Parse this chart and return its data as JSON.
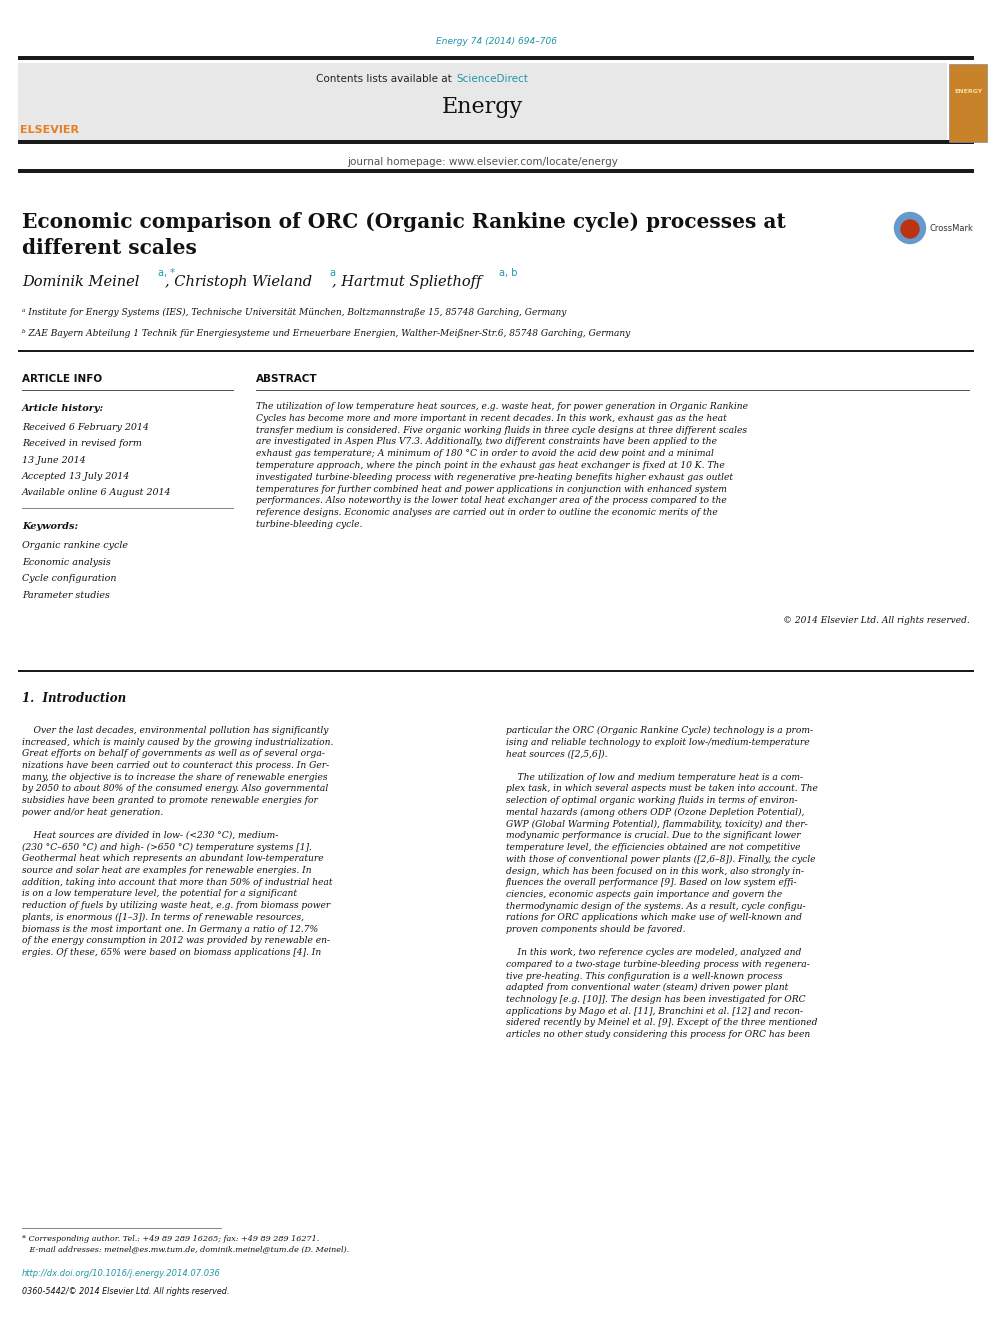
{
  "page_width": 9.92,
  "page_height": 13.23,
  "bg_color": "#ffffff",
  "header_cite": "Energy 74 (2014) 694–706",
  "header_cite_color": "#2196a8",
  "journal_header_bg": "#e8e8e8",
  "journal_name": "Energy",
  "journal_homepage": "journal homepage: www.elsevier.com/locate/energy",
  "contents_text": "Contents lists available at ",
  "sciencedirect_text": "ScienceDirect",
  "sciencedirect_color": "#2196a8",
  "top_bar_color": "#1a1a1a",
  "elsevier_color": "#e67e22",
  "title": "Economic comparison of ORC (Organic Rankine cycle) processes at\ndifferent scales",
  "authors": "Dominik Meinel",
  "authors_super": "a, *",
  "authors2": ", Christoph Wieland",
  "authors2_super": "a",
  "authors3": ", Hartmut Spliethoff",
  "authors3_super": "a, b",
  "affil_a": "ᵃ Institute for Energy Systems (IES), Technische Universität München, Boltzmannstraße 15, 85748 Garching, Germany",
  "affil_b": "ᵇ ZAE Bayern Abteilung 1 Technik für Energiesysteme und Erneuerbare Energien, Walther-Meißner-Str.6, 85748 Garching, Germany",
  "section_article_info": "ARTICLE INFO",
  "section_abstract": "ABSTRACT",
  "article_history_label": "Article history:",
  "article_history": [
    "Received 6 February 2014",
    "Received in revised form",
    "13 June 2014",
    "Accepted 13 July 2014",
    "Available online 6 August 2014"
  ],
  "keywords_label": "Keywords:",
  "keywords": [
    "Organic rankine cycle",
    "Economic analysis",
    "Cycle configuration",
    "Parameter studies"
  ],
  "abs_wrapped": "The utilization of low temperature heat sources, e.g. waste heat, for power generation in Organic Rankine\nCycles has become more and more important in recent decades. In this work, exhaust gas as the heat\ntransfer medium is considered. Five organic working fluids in three cycle designs at three different scales\nare investigated in Aspen Plus V7.3. Additionally, two different constraints have been applied to the\nexhaust gas temperature; A minimum of 180 °C in order to avoid the acid dew point and a minimal\ntemperature approach, where the pinch point in the exhaust gas heat exchanger is fixed at 10 K. The\ninvestigated turbine-bleeding process with regenerative pre-heating benefits higher exhaust gas outlet\ntemperatures for further combined heat and power applications in conjunction with enhanced system\nperformances. Also noteworthy is the lower total heat exchanger area of the process compared to the\nreference designs. Economic analyses are carried out in order to outline the economic merits of the\nturbine-bleeding cycle.",
  "copyright": "© 2014 Elsevier Ltd. All rights reserved.",
  "intro_section": "1.  Introduction",
  "intro_text1": "    Over the last decades, environmental pollution has significantly\nincreased, which is mainly caused by the growing industrialization.\nGreat efforts on behalf of governments as well as of several orga-\nnizations have been carried out to counteract this process. In Ger-\nmany, the objective is to increase the share of renewable energies\nby 2050 to about 80% of the consumed energy. Also governmental\nsubsidies have been granted to promote renewable energies for\npower and/or heat generation.\n\n    Heat sources are divided in low- (<230 °C), medium-\n(230 °C–650 °C) and high- (>650 °C) temperature systems [1].\nGeothermal heat which represents an abundant low-temperature\nsource and solar heat are examples for renewable energies. In\naddition, taking into account that more than 50% of industrial heat\nis on a low temperature level, the potential for a significant\nreduction of fuels by utilizing waste heat, e.g. from biomass power\nplants, is enormous ([1–3]). In terms of renewable resources,\nbiomass is the most important one. In Germany a ratio of 12.7%\nof the energy consumption in 2012 was provided by renewable en-\nergies. Of these, 65% were based on biomass applications [4]. In",
  "intro_text2": "particular the ORC (Organic Rankine Cycle) technology is a prom-\nising and reliable technology to exploit low-/medium-temperature\nheat sources ([2,5,6]).\n\n    The utilization of low and medium temperature heat is a com-\nplex task, in which several aspects must be taken into account. The\nselection of optimal organic working fluids in terms of environ-\nmental hazards (among others ODP (Ozone Depletion Potential),\nGWP (Global Warming Potential), flammability, toxicity) and ther-\nmodynamic performance is crucial. Due to the significant lower\ntemperature level, the efficiencies obtained are not competitive\nwith those of conventional power plants ([2,6–8]). Finally, the cycle\ndesign, which has been focused on in this work, also strongly in-\nfluences the overall performance [9]. Based on low system effi-\nciencies, economic aspects gain importance and govern the\nthermodynamic design of the systems. As a result, cycle configu-\nrations for ORC applications which make use of well-known and\nproven components should be favored.\n\n    In this work, two reference cycles are modeled, analyzed and\ncompared to a two-stage turbine-bleeding process with regenera-\ntive pre-heating. This configuration is a well-known process\nadapted from conventional water (steam) driven power plant\ntechnology [e.g. [10]]. The design has been investigated for ORC\napplications by Mago et al. [11], Branchini et al. [12] and recon-\nsidered recently by Meinel et al. [9]. Except of the three mentioned\narticles no other study considering this process for ORC has been",
  "footnote_text": "* Corresponding author. Tel.: +49 89 289 16265; fax: +49 89 289 16271.\n   E-mail addresses: meinel@es.mw.tum.de, dominik.meinel@tum.de (D. Meinel).",
  "doi_text": "http://dx.doi.org/10.1016/j.energy.2014.07.036",
  "doi_color": "#2196a8",
  "issn_text": "0360-5442/© 2014 Elsevier Ltd. All rights reserved.",
  "divider_color": "#1a1a1a"
}
